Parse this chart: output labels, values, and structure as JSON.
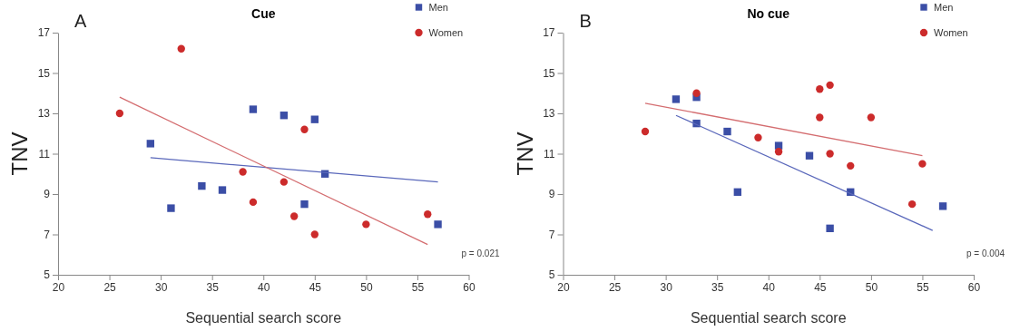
{
  "chart_data": [
    {
      "type": "scatter",
      "title": "Cue",
      "xlabel": "Sequential search score",
      "ylabel": "TNV",
      "annotations": [
        "A",
        "p = 0.021"
      ],
      "xlim": [
        20,
        60
      ],
      "xticks": [
        20,
        25,
        30,
        35,
        40,
        45,
        50,
        55,
        60
      ],
      "ylim": [
        5,
        17
      ],
      "yticks": [
        5,
        7,
        9,
        11,
        13,
        15,
        17
      ],
      "legend": "top right",
      "series": [
        {
          "name": "Men",
          "color": "#3b4ea6",
          "marker": "square",
          "x": [
            29,
            31,
            34,
            36,
            39,
            42,
            44,
            45,
            46,
            57
          ],
          "values": [
            11.5,
            8.3,
            9.4,
            9.2,
            13.2,
            12.9,
            8.5,
            12.7,
            10.0,
            7.5
          ]
        },
        {
          "name": "Women",
          "color": "#cc2b2b",
          "marker": "circle",
          "x": [
            26,
            32,
            38,
            39,
            42,
            43,
            44,
            45,
            50,
            56
          ],
          "values": [
            13.0,
            16.2,
            10.1,
            8.6,
            9.6,
            7.9,
            12.2,
            7.0,
            7.5,
            8.0
          ]
        },
        {
          "type": "line",
          "color": "#5a68bb",
          "x": [
            29,
            57
          ],
          "values": [
            10.8,
            9.6
          ]
        },
        {
          "type": "line",
          "color": "#d46d70",
          "x": [
            26,
            56
          ],
          "values": [
            13.8,
            6.5
          ]
        }
      ]
    },
    {
      "type": "scatter",
      "title": "No cue",
      "xlabel": "Sequential search score",
      "ylabel": "TNV",
      "annotations": [
        "B",
        "p = 0.004"
      ],
      "xlim": [
        20,
        60
      ],
      "xticks": [
        20,
        25,
        30,
        35,
        40,
        45,
        50,
        55,
        60
      ],
      "ylim": [
        5,
        17
      ],
      "yticks": [
        5,
        7,
        9,
        11,
        13,
        15,
        17
      ],
      "legend": "top right",
      "series": [
        {
          "name": "Men",
          "color": "#3b4ea6",
          "marker": "square",
          "x": [
            31,
            33,
            33,
            36,
            37,
            41,
            44,
            46,
            48,
            57
          ],
          "values": [
            13.7,
            13.8,
            12.5,
            12.1,
            9.1,
            11.4,
            10.9,
            7.3,
            9.1,
            8.4
          ]
        },
        {
          "name": "Women",
          "color": "#cc2b2b",
          "marker": "circle",
          "x": [
            28,
            33,
            39,
            41,
            45,
            46,
            45,
            46,
            48,
            50,
            54,
            55
          ],
          "values": [
            12.1,
            14.0,
            11.8,
            11.1,
            14.2,
            14.4,
            12.8,
            11.0,
            10.4,
            12.8,
            8.5,
            10.5
          ]
        },
        {
          "type": "line",
          "color": "#5a68bb",
          "x": [
            31,
            56
          ],
          "values": [
            12.9,
            7.2
          ]
        },
        {
          "type": "line",
          "color": "#d46d70",
          "x": [
            28,
            55
          ],
          "values": [
            13.5,
            10.9
          ]
        }
      ]
    }
  ]
}
